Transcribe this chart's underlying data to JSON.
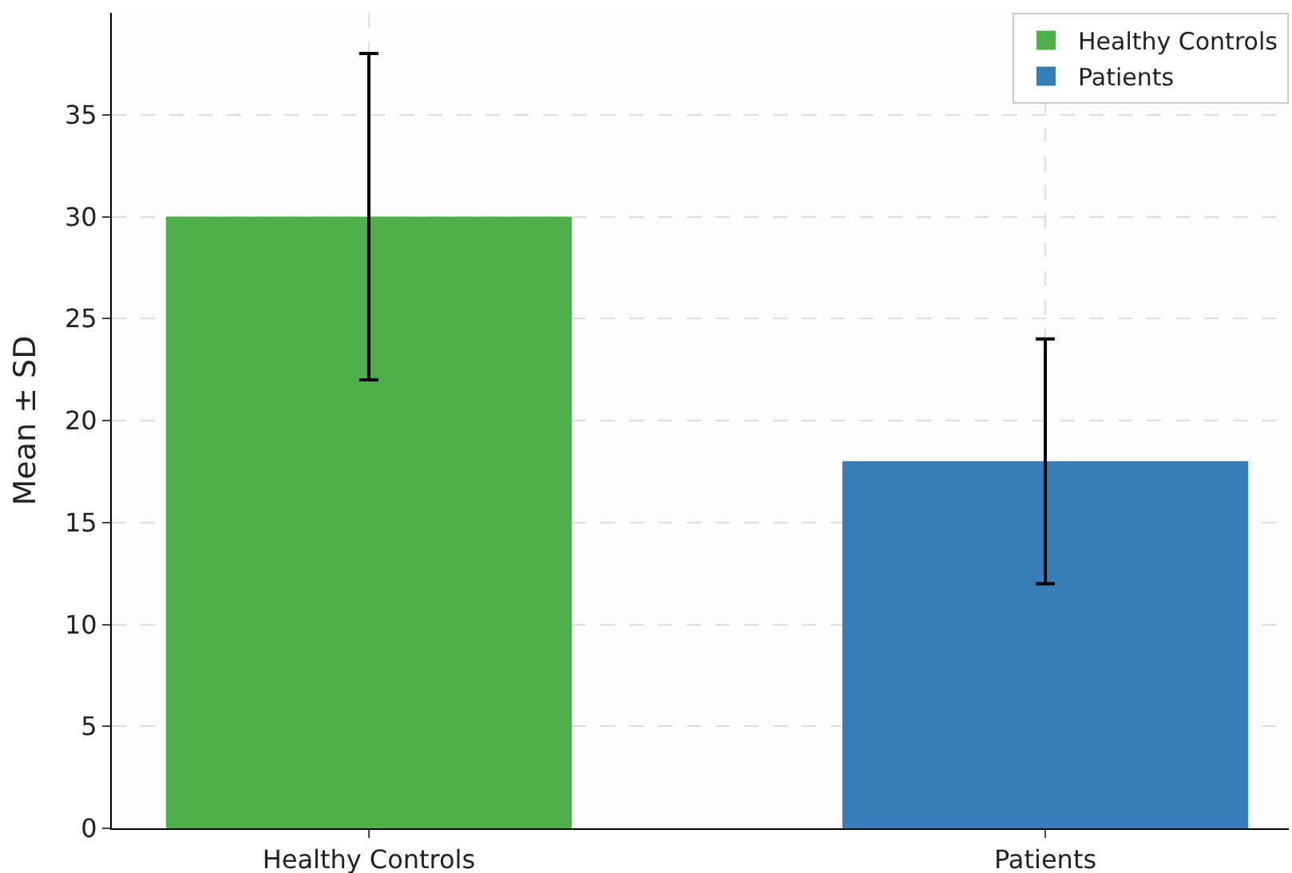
{
  "chart_data": {
    "type": "bar",
    "ylabel": "Mean ± SD",
    "categories": [
      "Healthy Controls",
      "Patients"
    ],
    "series": [
      {
        "name": "Healthy Controls",
        "color": "#4daf4a",
        "values": [
          30,
          null
        ],
        "errors": [
          8,
          null
        ]
      },
      {
        "name": "Patients",
        "color": "#377eb8",
        "values": [
          null,
          18
        ],
        "errors": [
          null,
          6
        ]
      }
    ],
    "ylim": [
      0,
      40
    ],
    "yticks": [
      0,
      5,
      10,
      15,
      20,
      25,
      30,
      35
    ],
    "grid": true,
    "legend": "top right"
  }
}
